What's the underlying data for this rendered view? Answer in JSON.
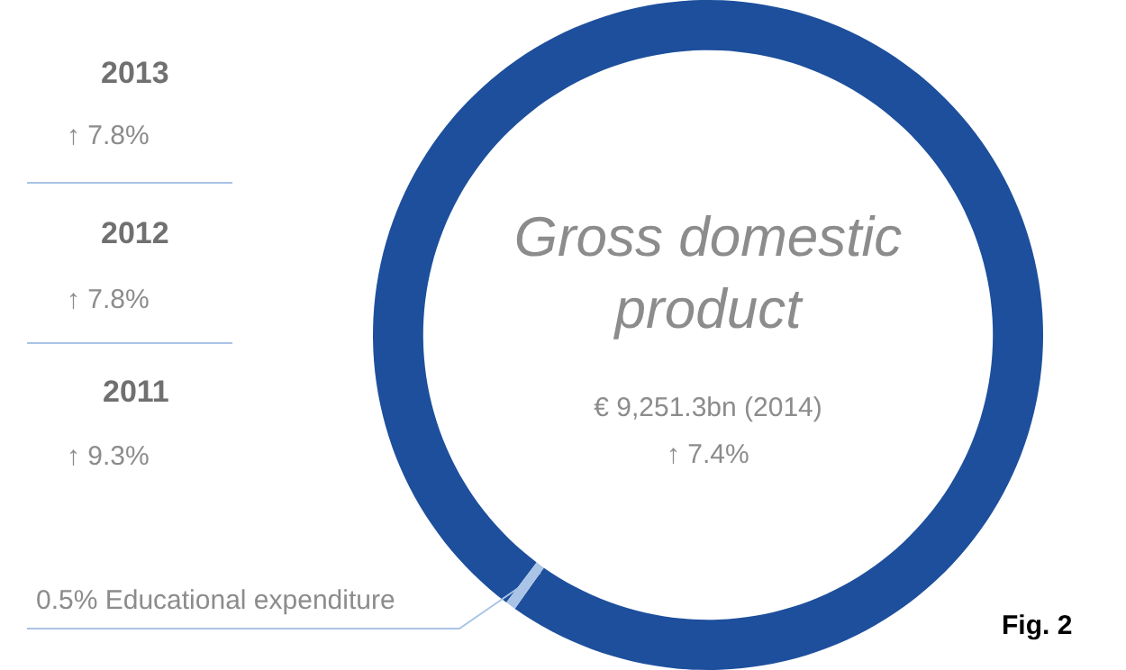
{
  "chart_data": {
    "type": "donut",
    "title": "Gross domestic product",
    "subtitle": "€ 9,251.3bn (2014)",
    "categories": [
      null,
      "Educational expenditure"
    ],
    "values": [
      99.5,
      0.5
    ],
    "value_labels": [
      null,
      "0.5%"
    ],
    "colors": [
      "#1d4f9c",
      "#a9c4e6"
    ],
    "annotations": [
      "2013",
      "↑ 7.8%",
      "2012",
      "↑ 7.8%",
      "2011",
      "↑ 9.3%",
      "↑ 7.4%",
      "Fig. 2"
    ]
  }
}
